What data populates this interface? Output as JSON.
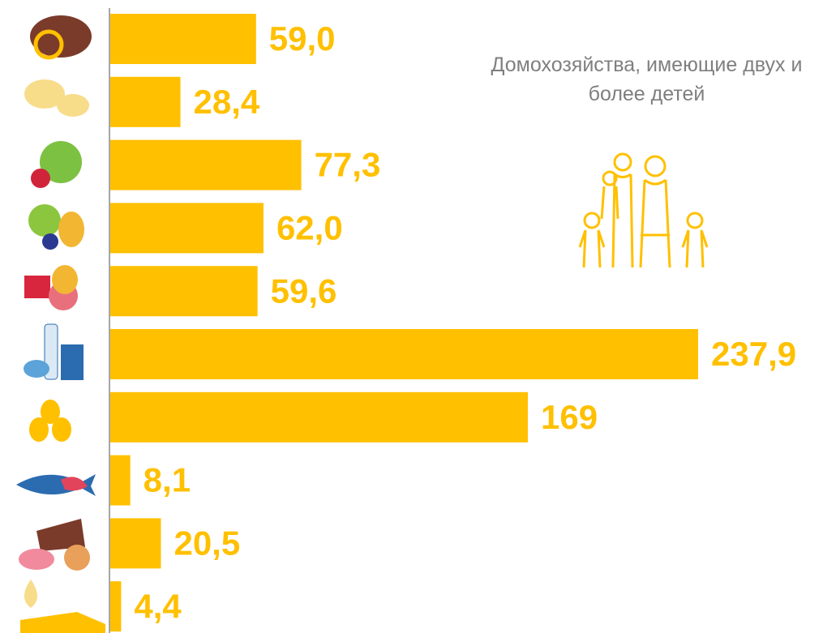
{
  "chart_data": {
    "type": "bar",
    "orientation": "horizontal",
    "title": "Домохозяйства, имеющие двух и более детей",
    "categories": [
      null,
      null,
      null,
      null,
      null,
      null,
      null,
      null,
      null,
      null
    ],
    "values": [
      59.0,
      28.4,
      77.3,
      62.0,
      59.6,
      237.9,
      169,
      8.1,
      20.5,
      4.4
    ],
    "value_labels": [
      "59,0",
      "28,4",
      "77,3",
      "62,0",
      "59,6",
      "237,9",
      "169",
      "8,1",
      "20,5",
      "4,4"
    ],
    "color": "#ffc000"
  }
}
